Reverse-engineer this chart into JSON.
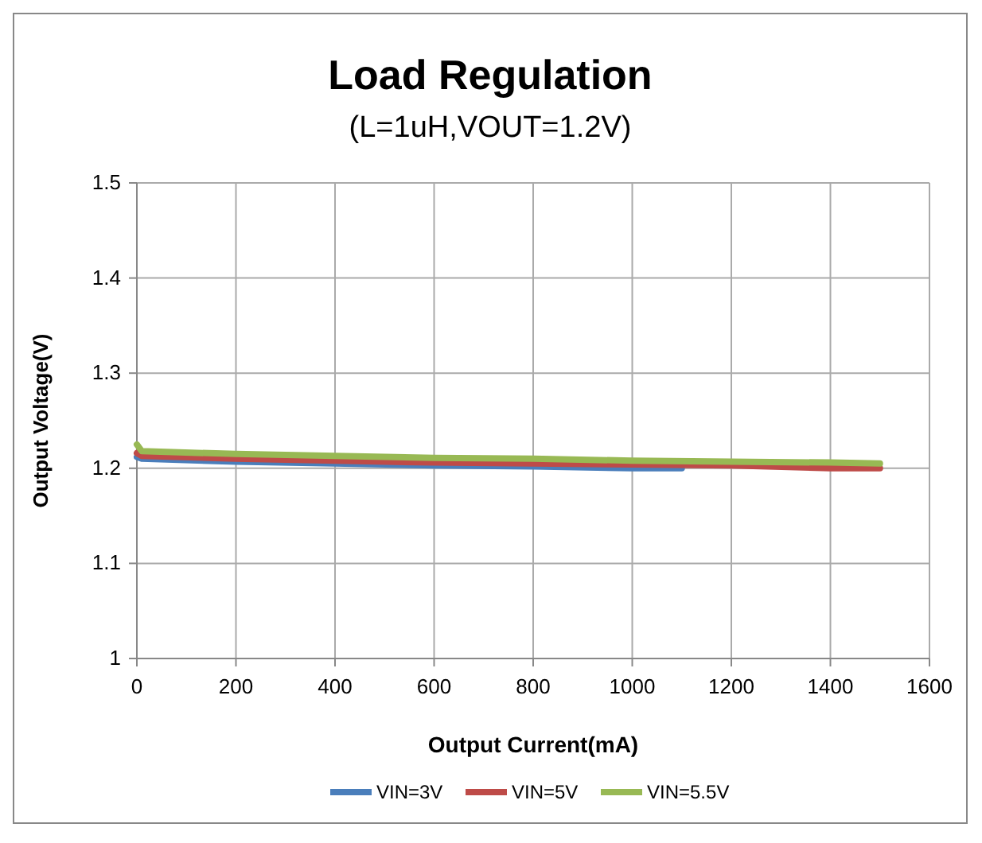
{
  "chart_data": {
    "type": "line",
    "title": "Load Regulation",
    "subtitle": "(L=1uH,VOUT=1.2V)",
    "xlabel": "Output Current(mA)",
    "ylabel": "Output Voltage(V)",
    "xlim": [
      0,
      1600
    ],
    "xticks": [
      0,
      200,
      400,
      600,
      800,
      1000,
      1200,
      1400,
      1600
    ],
    "ylim": [
      1,
      1.5
    ],
    "yticks": [
      1,
      1.1,
      1.2,
      1.3,
      1.4,
      1.5
    ],
    "grid": true,
    "legend": "bottom",
    "marker": "none",
    "line_style": "solid",
    "series": [
      {
        "name": "VIN=3V",
        "color": "#4a7ebb",
        "x": [
          0,
          10,
          200,
          400,
          600,
          800,
          1000,
          1100
        ],
        "values": [
          1.212,
          1.21,
          1.207,
          1.205,
          1.203,
          1.202,
          1.2,
          1.2
        ]
      },
      {
        "name": "VIN=5V",
        "color": "#be4b48",
        "x": [
          0,
          10,
          200,
          400,
          600,
          800,
          1000,
          1200,
          1400,
          1500
        ],
        "values": [
          1.216,
          1.213,
          1.21,
          1.208,
          1.206,
          1.205,
          1.204,
          1.203,
          1.2,
          1.2
        ]
      },
      {
        "name": "VIN=5.5V",
        "color": "#98b954",
        "x": [
          0,
          10,
          200,
          400,
          600,
          800,
          1000,
          1200,
          1400,
          1500
        ],
        "values": [
          1.225,
          1.218,
          1.215,
          1.213,
          1.211,
          1.21,
          1.208,
          1.207,
          1.206,
          1.205
        ]
      }
    ]
  }
}
